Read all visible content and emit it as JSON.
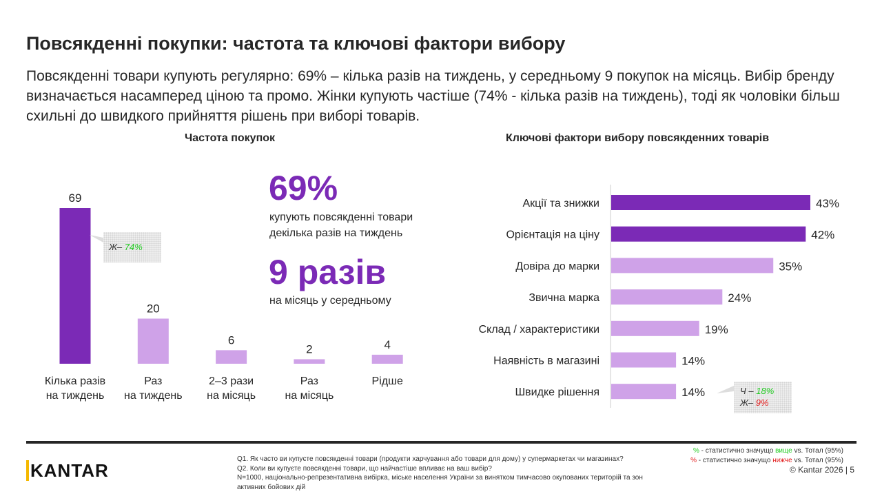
{
  "title": "Повсякденні покупки: частота та ключові фактори вибору",
  "subtitle": "Повсякденні товари купують регулярно: 69% – кілька разів на тиждень, у середньому 9 покупок на місяць. Вибір бренду визначається насамперед ціною та промо. Жінки купують частіше (74% - кілька разів на тиждень), тоді як чоловіки більш схильні до швидкого прийняття рішень при виборі товарів.",
  "colors": {
    "primary": "#7B2AB6",
    "secondary": "#CFA2E8",
    "higher": "#22cc22",
    "lower": "#e21c1c"
  },
  "chart_data": [
    {
      "type": "bar",
      "title": "Частота покупок",
      "categories": [
        "Кілька разів\nна тиждень",
        "Раз\nна тиждень",
        "2–3 рази\nна місяць",
        "Раз\nна місяць",
        "Рідше"
      ],
      "values": [
        69,
        20,
        6,
        2,
        4
      ],
      "highlight": [
        true,
        false,
        false,
        false,
        false
      ],
      "annotations": [
        {
          "category_index": 0,
          "label": "Ж–",
          "value": "74%",
          "color": "higher"
        }
      ]
    },
    {
      "type": "bar",
      "orientation": "horizontal",
      "title": "Ключові фактори вибору повсякденних товарів",
      "categories": [
        "Акції та знижки",
        "Орієнтація на ціну",
        "Довіра до марки",
        "Звична марка",
        "Склад / характеристики",
        "Наявність в магазині",
        "Швидке рішення"
      ],
      "values": [
        43,
        42,
        35,
        24,
        19,
        14,
        14
      ],
      "unit": "%",
      "highlight": [
        true,
        true,
        false,
        false,
        false,
        false,
        false
      ],
      "annotations": [
        {
          "category_index": 6,
          "lines": [
            {
              "label": "Ч –",
              "value": "18%",
              "color": "higher"
            },
            {
              "label": "Ж–",
              "value": "9%",
              "color": "lower"
            }
          ]
        }
      ]
    }
  ],
  "kpi": {
    "value1": "69%",
    "text1": "купують повсякденні товари декілька разів на тиждень",
    "value2": "9 разів",
    "text2": "на місяць у середньому"
  },
  "footer": {
    "notes": [
      "Q1. Як часто ви купуєте повсякденні товари (продукти харчування або товари для дому) у супермаркетах чи магазинах?",
      "Q2. Коли ви купуєте повсякденні товари, що найчастіше впливає на ваш вибір?",
      "N=1000, національно-репрезентативна вибірка, міське населення України за винятком тимчасово окупованих територій та зон активних бойових дій"
    ],
    "legend_higher": {
      "mark": "%",
      "pre": " - статистично значущо ",
      "word": "вище",
      "post": " vs. Тотал (95%)"
    },
    "legend_lower": {
      "mark": "%",
      "pre": " - статистично значущо ",
      "word": "нижче",
      "post": " vs. Тотал (95%)"
    },
    "copyright": "© Kantar 2026 | 5",
    "logo": "KANTAR"
  }
}
